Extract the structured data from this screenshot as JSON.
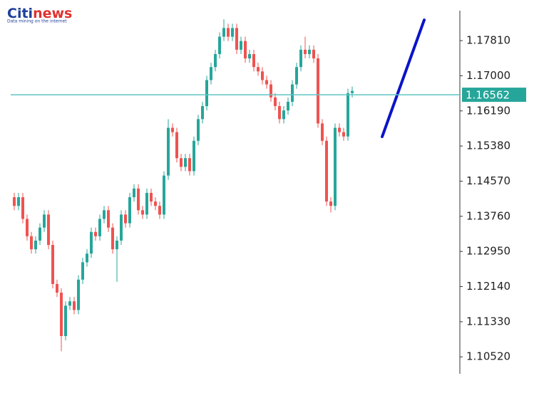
{
  "chart_data": {
    "type": "candlestick",
    "logo": {
      "name_1": "Citi",
      "name_2": "news",
      "tagline": "Data mining on the internet"
    },
    "up_color": "#26a69a",
    "down_color": "#ef5350",
    "ylim": [
      1.1013,
      1.185
    ],
    "yticks": [
      {
        "value": 1.1781,
        "label": "1.17810"
      },
      {
        "value": 1.17,
        "label": "1.17000"
      },
      {
        "value": 1.1619,
        "label": "1.16190"
      },
      {
        "value": 1.1538,
        "label": "1.15380"
      },
      {
        "value": 1.1457,
        "label": "1.14570"
      },
      {
        "value": 1.1376,
        "label": "1.13760"
      },
      {
        "value": 1.1295,
        "label": "1.12950"
      },
      {
        "value": 1.1214,
        "label": "1.12140"
      },
      {
        "value": 1.1133,
        "label": "1.11330"
      },
      {
        "value": 1.1052,
        "label": "1.10520"
      }
    ],
    "price_line": {
      "value": 1.16562,
      "color": "#5fc4c4"
    },
    "grid": false,
    "open": [
      1.142,
      1.14,
      1.142,
      1.137,
      1.133,
      1.13,
      1.132,
      1.135,
      1.138,
      1.131,
      1.122,
      1.12,
      1.11,
      1.117,
      1.118,
      1.116,
      1.123,
      1.127,
      1.129,
      1.134,
      1.133,
      1.137,
      1.139,
      1.135,
      1.13,
      1.132,
      1.138,
      1.136,
      1.142,
      1.144,
      1.139,
      1.138,
      1.143,
      1.141,
      1.14,
      1.138,
      1.147,
      1.158,
      1.157,
      1.151,
      1.149,
      1.151,
      1.148,
      1.155,
      1.16,
      1.163,
      1.169,
      1.172,
      1.175,
      1.179,
      1.181,
      1.179,
      1.181,
      1.176,
      1.178,
      1.174,
      1.175,
      1.172,
      1.171,
      1.169,
      1.168,
      1.165,
      1.163,
      1.16,
      1.162,
      1.164,
      1.168,
      1.172,
      1.176,
      1.175,
      1.176,
      1.174,
      1.159,
      1.155,
      1.141,
      1.14,
      1.158,
      1.157,
      1.156,
      1.166
    ],
    "high": [
      1.143,
      1.143,
      1.143,
      1.138,
      1.134,
      1.133,
      1.136,
      1.139,
      1.139,
      1.132,
      1.123,
      1.121,
      1.118,
      1.119,
      1.119,
      1.124,
      1.128,
      1.13,
      1.135,
      1.135,
      1.138,
      1.14,
      1.14,
      1.136,
      1.133,
      1.139,
      1.139,
      1.143,
      1.145,
      1.145,
      1.14,
      1.144,
      1.144,
      1.142,
      1.141,
      1.148,
      1.16,
      1.159,
      1.158,
      1.152,
      1.152,
      1.152,
      1.156,
      1.161,
      1.164,
      1.17,
      1.173,
      1.176,
      1.18,
      1.183,
      1.182,
      1.182,
      1.182,
      1.179,
      1.179,
      1.176,
      1.176,
      1.173,
      1.172,
      1.17,
      1.169,
      1.166,
      1.164,
      1.163,
      1.165,
      1.169,
      1.173,
      1.177,
      1.179,
      1.177,
      1.177,
      1.175,
      1.16,
      1.156,
      1.142,
      1.159,
      1.159,
      1.158,
      1.167,
      1.1675
    ],
    "low": [
      1.139,
      1.139,
      1.136,
      1.132,
      1.129,
      1.129,
      1.131,
      1.134,
      1.13,
      1.121,
      1.119,
      1.1065,
      1.109,
      1.116,
      1.115,
      1.115,
      1.122,
      1.126,
      1.128,
      1.132,
      1.132,
      1.136,
      1.134,
      1.129,
      1.1225,
      1.131,
      1.135,
      1.135,
      1.141,
      1.138,
      1.137,
      1.137,
      1.14,
      1.139,
      1.137,
      1.137,
      1.146,
      1.156,
      1.15,
      1.148,
      1.148,
      1.147,
      1.147,
      1.154,
      1.159,
      1.162,
      1.168,
      1.171,
      1.174,
      1.178,
      1.178,
      1.178,
      1.175,
      1.175,
      1.173,
      1.173,
      1.171,
      1.17,
      1.168,
      1.167,
      1.164,
      1.162,
      1.159,
      1.159,
      1.161,
      1.163,
      1.167,
      1.171,
      1.174,
      1.174,
      1.173,
      1.158,
      1.154,
      1.14,
      1.1385,
      1.139,
      1.156,
      1.155,
      1.155,
      1.165
    ],
    "close": [
      1.14,
      1.142,
      1.137,
      1.133,
      1.13,
      1.132,
      1.135,
      1.138,
      1.131,
      1.122,
      1.12,
      1.11,
      1.117,
      1.118,
      1.116,
      1.123,
      1.127,
      1.129,
      1.134,
      1.133,
      1.137,
      1.139,
      1.135,
      1.13,
      1.132,
      1.138,
      1.136,
      1.142,
      1.144,
      1.139,
      1.138,
      1.143,
      1.141,
      1.14,
      1.138,
      1.147,
      1.158,
      1.157,
      1.151,
      1.149,
      1.151,
      1.148,
      1.155,
      1.16,
      1.163,
      1.169,
      1.172,
      1.175,
      1.179,
      1.181,
      1.179,
      1.181,
      1.176,
      1.178,
      1.174,
      1.175,
      1.172,
      1.171,
      1.169,
      1.168,
      1.165,
      1.163,
      1.16,
      1.162,
      1.164,
      1.168,
      1.172,
      1.176,
      1.175,
      1.176,
      1.174,
      1.159,
      1.155,
      1.141,
      1.14,
      1.158,
      1.157,
      1.156,
      1.166,
      1.1665
    ]
  }
}
